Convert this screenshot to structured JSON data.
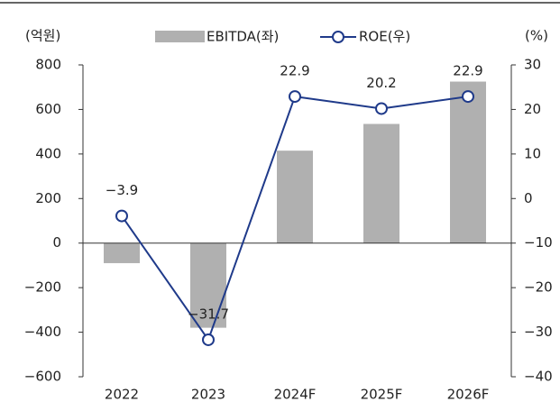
{
  "chart_data": {
    "type": "bar_line",
    "y_label": "(억원)",
    "y2_label": "(%)",
    "categories": [
      "2022",
      "2023",
      "2024F",
      "2025F",
      "2026F"
    ],
    "series": [
      {
        "name": "EBITDA(좌)",
        "type": "bar",
        "color": "#b0b0b0",
        "axis": "y",
        "values": [
          -90,
          -380,
          415,
          535,
          725
        ]
      },
      {
        "name": "ROE(우)",
        "type": "line",
        "color": "#1f3a8a",
        "axis": "y2",
        "values": [
          -3.9,
          -31.7,
          22.9,
          20.2,
          22.9
        ],
        "value_labels": [
          "−3.9",
          "−31.7",
          "22.9",
          "20.2",
          "22.9"
        ]
      }
    ],
    "ylim": [
      -600,
      800
    ],
    "yticks": [
      {
        "value": -600,
        "label": "−600"
      },
      {
        "value": -400,
        "label": "−400"
      },
      {
        "value": -200,
        "label": "−200"
      },
      0,
      200,
      400,
      600,
      800
    ],
    "y2lim": [
      -40,
      30
    ],
    "y2ticks": [
      {
        "value": -40,
        "label": "−40"
      },
      {
        "value": -30,
        "label": "−30"
      },
      {
        "value": -20,
        "label": "−20"
      },
      {
        "value": -10,
        "label": "−10"
      },
      0,
      10,
      20,
      30
    ],
    "grid": false
  }
}
